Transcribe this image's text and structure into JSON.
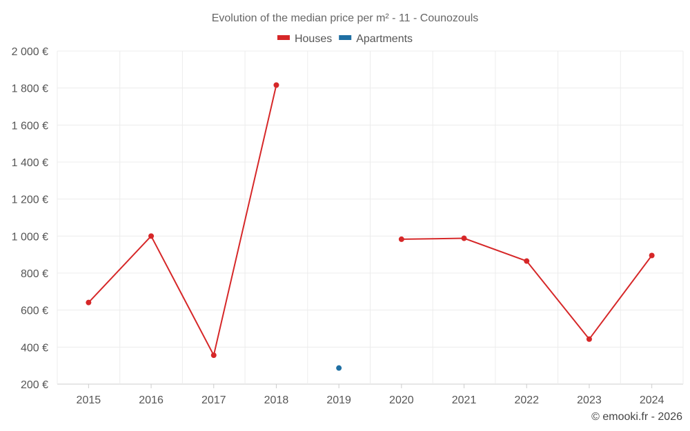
{
  "chart_data": {
    "type": "line",
    "title": "Evolution of the median price per m² - 11 - Counozouls",
    "categories": [
      "2015",
      "2016",
      "2017",
      "2018",
      "2019",
      "2020",
      "2021",
      "2022",
      "2023",
      "2024"
    ],
    "ylim": [
      200,
      2000
    ],
    "yticks": [
      200,
      400,
      600,
      800,
      1000,
      1200,
      1400,
      1600,
      1800,
      2000
    ],
    "ytick_labels": [
      "200 €",
      "400 €",
      "600 €",
      "800 €",
      "1 000 €",
      "1 200 €",
      "1 400 €",
      "1 600 €",
      "1 800 €",
      "2 000 €"
    ],
    "grid": true,
    "legend_position": "top-center",
    "series": [
      {
        "name": "Houses",
        "color": "#d62728",
        "values": [
          641,
          1000,
          356,
          1816,
          null,
          983,
          988,
          865,
          443,
          895
        ]
      },
      {
        "name": "Apartments",
        "color": "#1f6fa3",
        "values": [
          null,
          null,
          null,
          null,
          287,
          null,
          null,
          null,
          null,
          null
        ]
      }
    ]
  },
  "credit": "© emooki.fr - 2026"
}
